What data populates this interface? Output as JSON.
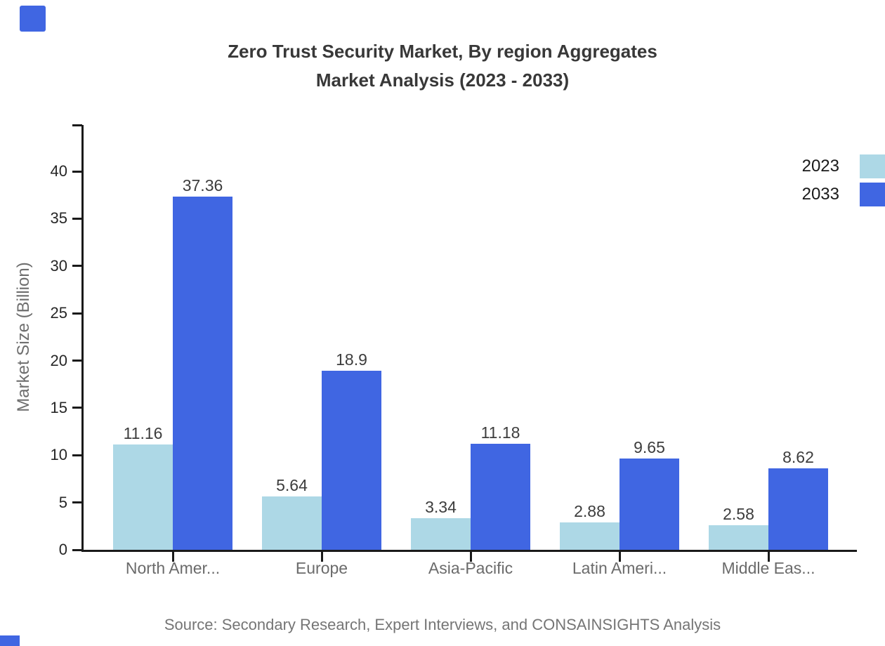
{
  "brand": {
    "accent_color": "#4066E2"
  },
  "title": {
    "line1": "Zero Trust Security Market, By region Aggregates",
    "line2": "Market Analysis (2023 - 2033)"
  },
  "source": {
    "text": "Source: Secondary Research, Expert Interviews, and CONSAINSIGHTS Analysis"
  },
  "chart_data": {
    "type": "bar",
    "title": "Zero Trust Security Market, By region Aggregates Market Analysis (2023 - 2033)",
    "categories": [
      "North Amer...",
      "Europe",
      "Asia-Pacific",
      "Latin Ameri...",
      "Middle Eas..."
    ],
    "series": [
      {
        "name": "2023",
        "color": "#ADD8E6",
        "values": [
          11.16,
          5.64,
          3.34,
          2.88,
          2.58
        ]
      },
      {
        "name": "2033",
        "color": "#4066E2",
        "values": [
          37.36,
          18.9,
          11.18,
          9.65,
          8.62
        ]
      }
    ],
    "xlabel": "",
    "ylabel": "Market Size (Billion)",
    "ylim": [
      0,
      44.9
    ],
    "yticks": [
      0,
      5,
      10,
      15,
      20,
      25,
      30,
      35,
      40
    ],
    "grid": false,
    "legend_position": "top-right",
    "value_labels": true
  }
}
